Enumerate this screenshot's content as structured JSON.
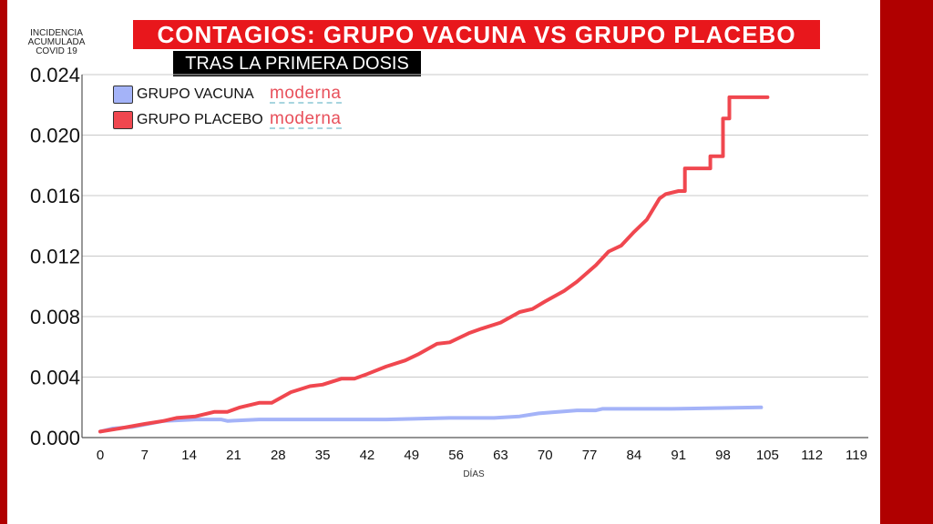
{
  "title": "CONTAGIOS: GRUPO VACUNA VS GRUPO PLACEBO",
  "subtitle": "TRAS LA PRIMERA DOSIS",
  "ylabel_lines": [
    "INCIDENCIA",
    "ACUMULADA",
    "COVID   19"
  ],
  "xlabel": "DÍAS",
  "brand": "moderna",
  "colors": {
    "vacuna": "#a4b3f8",
    "placebo": "#f0474f",
    "title_bg": "#e8171c",
    "frame": "#b00000"
  },
  "chart_data": {
    "type": "line",
    "xlabel": "DÍAS",
    "ylabel": "INCIDENCIA ACUMULADA COVID 19",
    "xlim": [
      0,
      119
    ],
    "ylim": [
      0,
      0.024
    ],
    "x_ticks": [
      "0",
      "7",
      "14",
      "21",
      "28",
      "35",
      "42",
      "49",
      "56",
      "63",
      "70",
      "77",
      "84",
      "91",
      "98",
      "105",
      "112",
      "119"
    ],
    "y_ticks": [
      "0.000",
      "0.004",
      "0.008",
      "0.012",
      "0.016",
      "0.020",
      "0.024"
    ],
    "grid": "horizontal",
    "legend_position": "top-left",
    "series": [
      {
        "name": "GRUPO VACUNA",
        "color": "#a4b3f8",
        "points": [
          [
            0,
            0.0004
          ],
          [
            2,
            0.0006
          ],
          [
            5,
            0.0007
          ],
          [
            10,
            0.0011
          ],
          [
            15,
            0.0012
          ],
          [
            19,
            0.0012
          ],
          [
            20,
            0.0011
          ],
          [
            25,
            0.0012
          ],
          [
            35,
            0.0012
          ],
          [
            45,
            0.0012
          ],
          [
            55,
            0.0013
          ],
          [
            62,
            0.0013
          ],
          [
            66,
            0.0014
          ],
          [
            69,
            0.0016
          ],
          [
            72,
            0.0017
          ],
          [
            75,
            0.0018
          ],
          [
            78,
            0.0018
          ],
          [
            79,
            0.0019
          ],
          [
            90,
            0.0019
          ],
          [
            104,
            0.002
          ]
        ]
      },
      {
        "name": "GRUPO PLACEBO",
        "color": "#f0474f",
        "points": [
          [
            0,
            0.0004
          ],
          [
            3,
            0.0006
          ],
          [
            7,
            0.0009
          ],
          [
            10,
            0.0011
          ],
          [
            12,
            0.0013
          ],
          [
            15,
            0.0014
          ],
          [
            18,
            0.0017
          ],
          [
            20,
            0.0017
          ],
          [
            22,
            0.002
          ],
          [
            25,
            0.0023
          ],
          [
            27,
            0.0023
          ],
          [
            30,
            0.003
          ],
          [
            33,
            0.0034
          ],
          [
            35,
            0.0035
          ],
          [
            38,
            0.0039
          ],
          [
            40,
            0.0039
          ],
          [
            42,
            0.0042
          ],
          [
            45,
            0.0047
          ],
          [
            48,
            0.0051
          ],
          [
            50,
            0.0055
          ],
          [
            53,
            0.0062
          ],
          [
            55,
            0.0063
          ],
          [
            58,
            0.0069
          ],
          [
            60,
            0.0072
          ],
          [
            63,
            0.0076
          ],
          [
            66,
            0.0083
          ],
          [
            68,
            0.0085
          ],
          [
            70,
            0.009
          ],
          [
            73,
            0.0097
          ],
          [
            75,
            0.0103
          ],
          [
            78,
            0.0114
          ],
          [
            80,
            0.0123
          ],
          [
            82,
            0.0127
          ],
          [
            84,
            0.0136
          ],
          [
            86,
            0.0144
          ],
          [
            88,
            0.0158
          ],
          [
            89,
            0.0161
          ],
          [
            91,
            0.0163
          ],
          [
            92,
            0.0163
          ],
          [
            92,
            0.0178
          ],
          [
            96,
            0.0178
          ],
          [
            96,
            0.0186
          ],
          [
            98,
            0.0186
          ],
          [
            98,
            0.0211
          ],
          [
            99,
            0.0211
          ],
          [
            99,
            0.0225
          ],
          [
            105,
            0.0225
          ]
        ]
      }
    ]
  }
}
